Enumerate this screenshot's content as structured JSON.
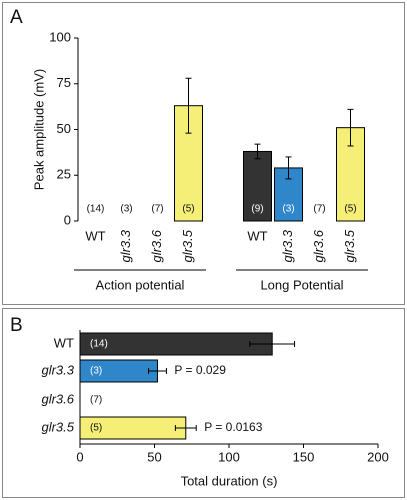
{
  "chart_data": [
    {
      "type": "bar",
      "panel_label": "A",
      "y_label": "Peak amplitude (mV)",
      "ylim": [
        0,
        100
      ],
      "yticks": [
        0,
        25,
        50,
        75,
        100
      ],
      "groups": [
        {
          "name": "Action potential",
          "categories": [
            "WT",
            "glr3.3",
            "glr3.6",
            "glr3.5"
          ],
          "values": [
            null,
            null,
            null,
            63
          ],
          "errors": [
            null,
            null,
            null,
            15
          ],
          "n_labels": [
            "(14)",
            "(3)",
            "(7)",
            "(5)"
          ],
          "colors": [
            null,
            null,
            null,
            "#f5ef78"
          ]
        },
        {
          "name": "Long Potential",
          "categories": [
            "WT",
            "glr3.3",
            "glr3.6",
            "glr3.5"
          ],
          "values": [
            38,
            29,
            null,
            51
          ],
          "errors": [
            4,
            6,
            null,
            10
          ],
          "n_labels": [
            "(9)",
            "(3)",
            "(7)",
            "(5)"
          ],
          "colors": [
            "#333333",
            "#2f86c9",
            null,
            "#f5ef78"
          ]
        }
      ]
    },
    {
      "type": "hbar",
      "panel_label": "B",
      "x_label": "Total duration (s)",
      "xlim": [
        0,
        200
      ],
      "xticks": [
        0,
        50,
        100,
        150,
        200
      ],
      "categories": [
        "WT",
        "glr3.3",
        "glr3.6",
        "glr3.5"
      ],
      "values": [
        129,
        52,
        null,
        71
      ],
      "errors": [
        15,
        6,
        null,
        7
      ],
      "n_labels": [
        "(14)",
        "(3)",
        "(7)",
        "(5)"
      ],
      "colors": [
        "#333333",
        "#2f86c9",
        null,
        "#f5ef78"
      ],
      "annotations": [
        null,
        "P = 0.029",
        null,
        "P = 0.0163"
      ]
    }
  ]
}
